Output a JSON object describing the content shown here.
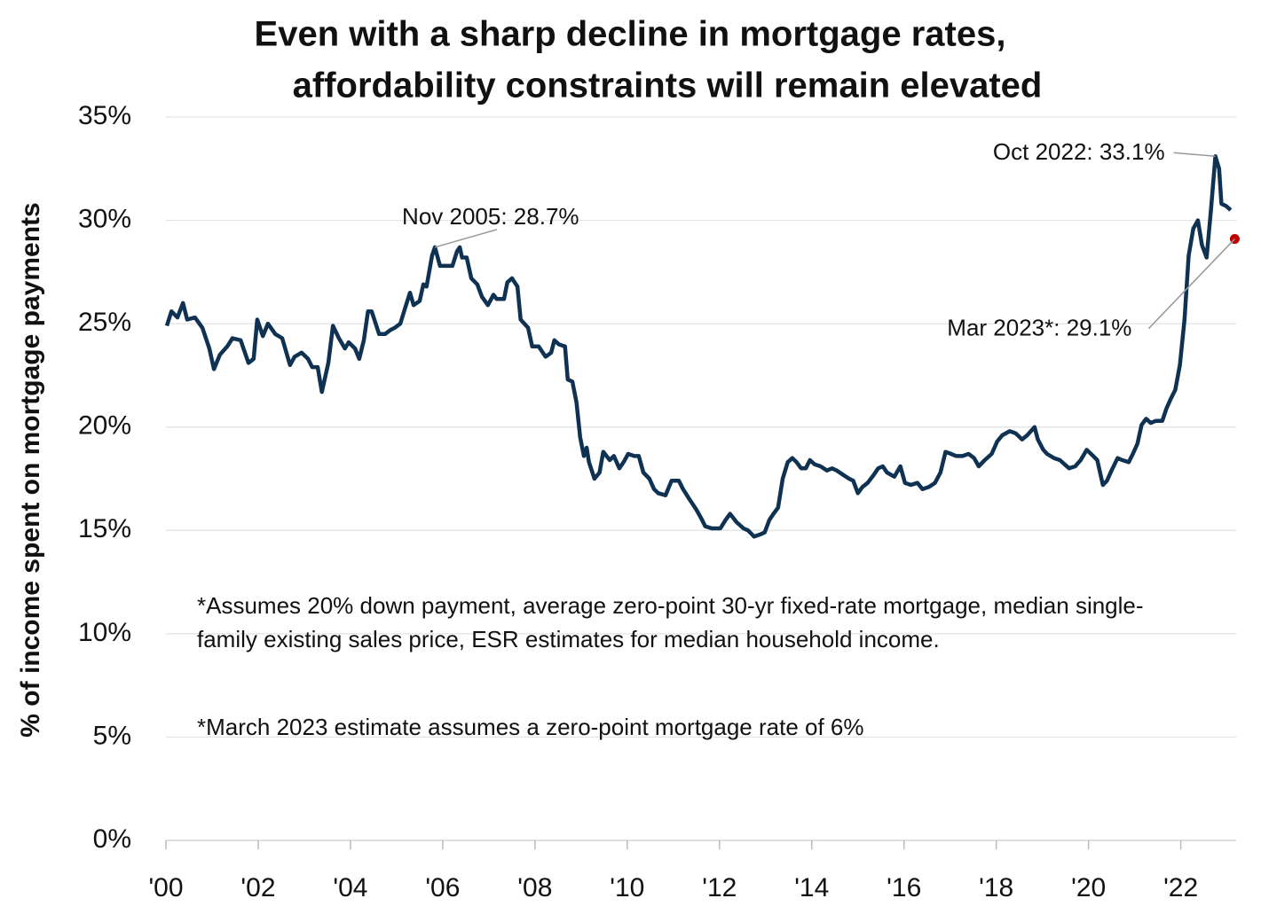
{
  "chart_data": {
    "type": "line",
    "title": [
      "Even with a sharp decline in mortgage rates,",
      "affordability constraints will remain elevated"
    ],
    "y_label": "% of income spent on mortgage payments",
    "notes": [
      "*Assumes 20% down payment, average zero-point 30-yr fixed-rate mortgage, median single-family existing sales price, ESR estimates for median household income.",
      "*March 2023 estimate assumes a zero-point mortgage rate of 6%"
    ],
    "xlim": [
      2000,
      2023.2
    ],
    "ylim": [
      0,
      35
    ],
    "xticks": [
      {
        "value": 2000,
        "label": "'00"
      },
      {
        "value": 2002,
        "label": "'02"
      },
      {
        "value": 2004,
        "label": "'04"
      },
      {
        "value": 2006,
        "label": "'06"
      },
      {
        "value": 2008,
        "label": "'08"
      },
      {
        "value": 2010,
        "label": "'10"
      },
      {
        "value": 2012,
        "label": "'12"
      },
      {
        "value": 2014,
        "label": "'14"
      },
      {
        "value": 2016,
        "label": "'16"
      },
      {
        "value": 2018,
        "label": "'18"
      },
      {
        "value": 2020,
        "label": "'20"
      },
      {
        "value": 2022,
        "label": "'22"
      }
    ],
    "yticks": [
      {
        "value": 0,
        "label": "0%"
      },
      {
        "value": 5,
        "label": "5%"
      },
      {
        "value": 10,
        "label": "10%"
      },
      {
        "value": 15,
        "label": "15%"
      },
      {
        "value": 20,
        "label": "20%"
      },
      {
        "value": 25,
        "label": "25%"
      },
      {
        "value": 30,
        "label": "30%"
      },
      {
        "value": 35,
        "label": "35%"
      }
    ],
    "grid": true,
    "x": [
      2000.02,
      2000.12,
      2000.25,
      2000.37,
      2000.46,
      2000.63,
      2000.79,
      2000.94,
      2001.04,
      2001.17,
      2001.33,
      2001.44,
      2001.62,
      2001.79,
      2001.9,
      2001.98,
      2002.1,
      2002.21,
      2002.37,
      2002.52,
      2002.69,
      2002.79,
      2002.94,
      2003.08,
      2003.17,
      2003.29,
      2003.38,
      2003.52,
      2003.62,
      2003.75,
      2003.88,
      2003.96,
      2004.1,
      2004.19,
      2004.29,
      2004.38,
      2004.46,
      2004.62,
      2004.75,
      2004.87,
      2004.96,
      2005.08,
      2005.19,
      2005.29,
      2005.37,
      2005.5,
      2005.58,
      2005.65,
      2005.77,
      2005.83,
      2005.94,
      2006.1,
      2006.21,
      2006.31,
      2006.37,
      2006.42,
      2006.52,
      2006.62,
      2006.75,
      2006.85,
      2006.98,
      2007.1,
      2007.17,
      2007.33,
      2007.4,
      2007.5,
      2007.62,
      2007.69,
      2007.85,
      2007.94,
      2008.08,
      2008.23,
      2008.35,
      2008.42,
      2008.52,
      2008.65,
      2008.71,
      2008.81,
      2008.9,
      2008.98,
      2009.06,
      2009.12,
      2009.17,
      2009.29,
      2009.4,
      2009.48,
      2009.62,
      2009.71,
      2009.83,
      2009.92,
      2010.02,
      2010.15,
      2010.25,
      2010.35,
      2010.48,
      2010.58,
      2010.67,
      2010.83,
      2010.96,
      2011.12,
      2011.21,
      2011.35,
      2011.5,
      2011.6,
      2011.69,
      2011.83,
      2012.02,
      2012.13,
      2012.23,
      2012.37,
      2012.52,
      2012.62,
      2012.75,
      2012.88,
      2012.98,
      2013.08,
      2013.17,
      2013.27,
      2013.37,
      2013.48,
      2013.58,
      2013.67,
      2013.77,
      2013.87,
      2013.96,
      2014.06,
      2014.19,
      2014.33,
      2014.44,
      2014.54,
      2014.67,
      2014.81,
      2014.9,
      2015.0,
      2015.1,
      2015.21,
      2015.35,
      2015.44,
      2015.54,
      2015.63,
      2015.79,
      2015.92,
      2016.02,
      2016.15,
      2016.29,
      2016.4,
      2016.54,
      2016.67,
      2016.79,
      2016.9,
      2017.02,
      2017.13,
      2017.27,
      2017.4,
      2017.52,
      2017.62,
      2017.75,
      2017.9,
      2018.02,
      2018.13,
      2018.29,
      2018.42,
      2018.56,
      2018.67,
      2018.83,
      2018.9,
      2019.02,
      2019.1,
      2019.25,
      2019.38,
      2019.48,
      2019.58,
      2019.71,
      2019.83,
      2019.96,
      2020.1,
      2020.19,
      2020.31,
      2020.4,
      2020.5,
      2020.63,
      2020.73,
      2020.87,
      2020.96,
      2021.06,
      2021.15,
      2021.25,
      2021.35,
      2021.46,
      2021.6,
      2021.69,
      2021.79,
      2021.88,
      2021.98,
      2022.08,
      2022.17,
      2022.27,
      2022.37,
      2022.46,
      2022.56,
      2022.65,
      2022.71,
      2022.75,
      2022.83,
      2022.88,
      2022.98,
      2023.08
    ],
    "series": [
      {
        "color": "#0f3252",
        "values": [
          24.9,
          25.6,
          25.3,
          26.0,
          25.2,
          25.3,
          24.8,
          23.8,
          22.8,
          23.5,
          23.9,
          24.3,
          24.2,
          23.1,
          23.3,
          25.2,
          24.4,
          25.0,
          24.5,
          24.3,
          23.0,
          23.4,
          23.6,
          23.3,
          22.9,
          22.9,
          21.7,
          23.1,
          24.9,
          24.3,
          23.8,
          24.1,
          23.8,
          23.3,
          24.2,
          25.6,
          25.6,
          24.5,
          24.5,
          24.7,
          24.8,
          25.0,
          25.8,
          26.5,
          25.9,
          26.1,
          26.9,
          26.8,
          28.3,
          28.7,
          27.8,
          27.8,
          27.8,
          28.5,
          28.7,
          28.2,
          28.2,
          27.2,
          26.9,
          26.3,
          25.9,
          26.4,
          26.2,
          26.2,
          27.0,
          27.2,
          26.8,
          25.2,
          24.8,
          23.9,
          23.9,
          23.4,
          23.6,
          24.2,
          24.0,
          23.9,
          22.3,
          22.2,
          21.2,
          19.5,
          18.6,
          19.0,
          18.3,
          17.5,
          17.8,
          18.8,
          18.4,
          18.6,
          18.0,
          18.3,
          18.7,
          18.6,
          18.6,
          17.8,
          17.5,
          17.0,
          16.8,
          16.7,
          17.4,
          17.4,
          17.0,
          16.5,
          16.0,
          15.6,
          15.2,
          15.1,
          15.1,
          15.5,
          15.8,
          15.4,
          15.1,
          15.0,
          14.7,
          14.8,
          14.9,
          15.5,
          15.8,
          16.1,
          17.5,
          18.3,
          18.5,
          18.3,
          18.0,
          18.0,
          18.4,
          18.2,
          18.1,
          17.9,
          18.0,
          17.9,
          17.7,
          17.5,
          17.4,
          16.8,
          17.1,
          17.3,
          17.7,
          18.0,
          18.1,
          17.8,
          17.6,
          18.1,
          17.3,
          17.2,
          17.3,
          17.0,
          17.1,
          17.3,
          17.8,
          18.8,
          18.7,
          18.6,
          18.6,
          18.7,
          18.5,
          18.1,
          18.4,
          18.7,
          19.3,
          19.6,
          19.8,
          19.7,
          19.4,
          19.6,
          20.0,
          19.4,
          18.9,
          18.7,
          18.5,
          18.4,
          18.2,
          18.0,
          18.1,
          18.4,
          18.9,
          18.6,
          18.4,
          17.2,
          17.4,
          17.9,
          18.5,
          18.4,
          18.3,
          18.7,
          19.2,
          20.1,
          20.4,
          20.2,
          20.3,
          20.3,
          20.9,
          21.4,
          21.8,
          23.0,
          25.2,
          28.3,
          29.6,
          30.0,
          28.8,
          28.2,
          30.4,
          32.0,
          33.1,
          32.5,
          30.8,
          30.7,
          30.5
        ]
      }
    ],
    "estimate": {
      "x": 2023.17,
      "value": 29.1,
      "color": "#c00000"
    },
    "annotations": [
      {
        "text": "Nov 2005: 28.7%",
        "x": 2005.83,
        "y": 28.7
      },
      {
        "text": "Oct 2022: 33.1%",
        "x": 2022.75,
        "y": 33.1
      },
      {
        "text": "Mar 2023*: 29.1%",
        "x": 2023.17,
        "y": 29.1
      }
    ]
  }
}
